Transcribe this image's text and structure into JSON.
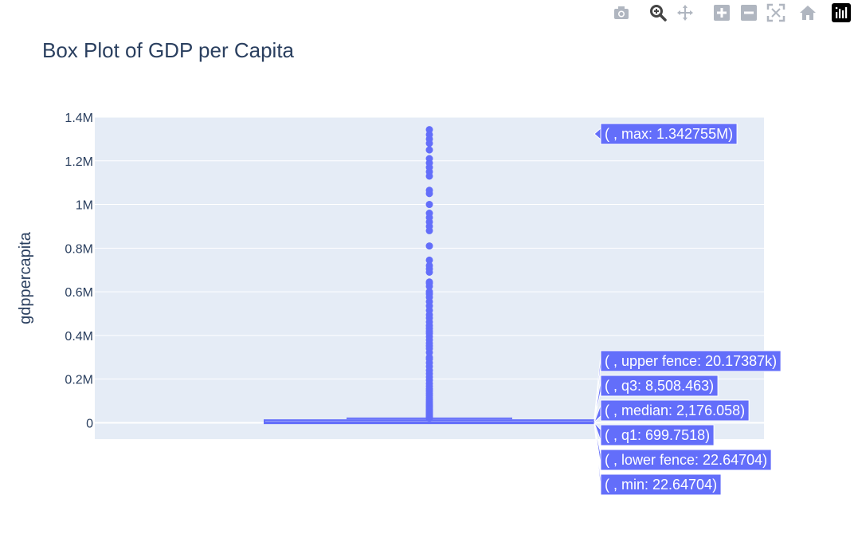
{
  "toolbar": {
    "buttons": [
      {
        "name": "camera-icon",
        "title": "Download plot as a png"
      },
      {
        "name": "zoom-icon",
        "title": "Zoom"
      },
      {
        "name": "pan-icon",
        "title": "Pan"
      },
      {
        "name": "zoom-in-icon",
        "title": "Zoom in"
      },
      {
        "name": "zoom-out-icon",
        "title": "Zoom out"
      },
      {
        "name": "autoscale-icon",
        "title": "Autoscale"
      },
      {
        "name": "reset-axes-icon",
        "title": "Reset axes"
      },
      {
        "name": "plotly-logo-icon",
        "title": "Produced with Plotly"
      }
    ]
  },
  "colors": {
    "box": "#636efa",
    "plot_bg": "#e5ecf6",
    "text": "#2a3f5f",
    "active_icon": "#444444",
    "inactive_icon": "#b0b6c0"
  },
  "chart_data": {
    "type": "box",
    "title": "Box Plot of GDP per Capita",
    "xlabel": "",
    "ylabel": "gdppercapita",
    "ylim": [
      -75000,
      1400000
    ],
    "y_ticks": [
      {
        "value": 0,
        "label": "0"
      },
      {
        "value": 200000,
        "label": "0.2M"
      },
      {
        "value": 400000,
        "label": "0.4M"
      },
      {
        "value": 600000,
        "label": "0.6M"
      },
      {
        "value": 800000,
        "label": "0.8M"
      },
      {
        "value": 1000000,
        "label": "1M"
      },
      {
        "value": 1200000,
        "label": "1.2M"
      },
      {
        "value": 1400000,
        "label": "1.4M"
      }
    ],
    "grid": true,
    "legend": "none",
    "stats": {
      "min": 22.64704,
      "lower_fence": 22.64704,
      "q1": 699.7518,
      "median": 2176.058,
      "q3": 8508.463,
      "upper_fence": 20173.87,
      "max": 1342755
    },
    "hover_labels": [
      {
        "key": "max",
        "text": "( , max: 1.342755M)"
      },
      {
        "key": "upper_fence",
        "text": "( , upper fence: 20.17387k)"
      },
      {
        "key": "q3",
        "text": "( , q3: 8,508.463)"
      },
      {
        "key": "median",
        "text": "( , median: 2,176.058)"
      },
      {
        "key": "q1",
        "text": "( , q1: 699.7518)"
      },
      {
        "key": "lower_fence",
        "text": "( , lower fence: 22.64704)"
      },
      {
        "key": "min",
        "text": "( , min: 22.64704)"
      }
    ],
    "outliers": [
      22000,
      24000,
      26000,
      28000,
      30000,
      33000,
      36000,
      40000,
      44000,
      48000,
      52000,
      57000,
      62000,
      68000,
      74000,
      80000,
      88000,
      96000,
      105000,
      115000,
      125000,
      135000,
      145000,
      155000,
      168000,
      180000,
      195000,
      210000,
      225000,
      240000,
      258000,
      275000,
      292000,
      300000,
      322000,
      340000,
      352000,
      365000,
      380000,
      395000,
      410000,
      420000,
      432000,
      445000,
      462000,
      480000,
      495000,
      515000,
      535000,
      555000,
      575000,
      590000,
      600000,
      625000,
      640000,
      645000,
      690000,
      705000,
      720000,
      745000,
      810000,
      880000,
      900000,
      920000,
      940000,
      960000,
      1000000,
      1050000,
      1065000,
      1130000,
      1150000,
      1170000,
      1190000,
      1210000,
      1250000,
      1280000,
      1300000,
      1320000,
      1342755
    ]
  }
}
